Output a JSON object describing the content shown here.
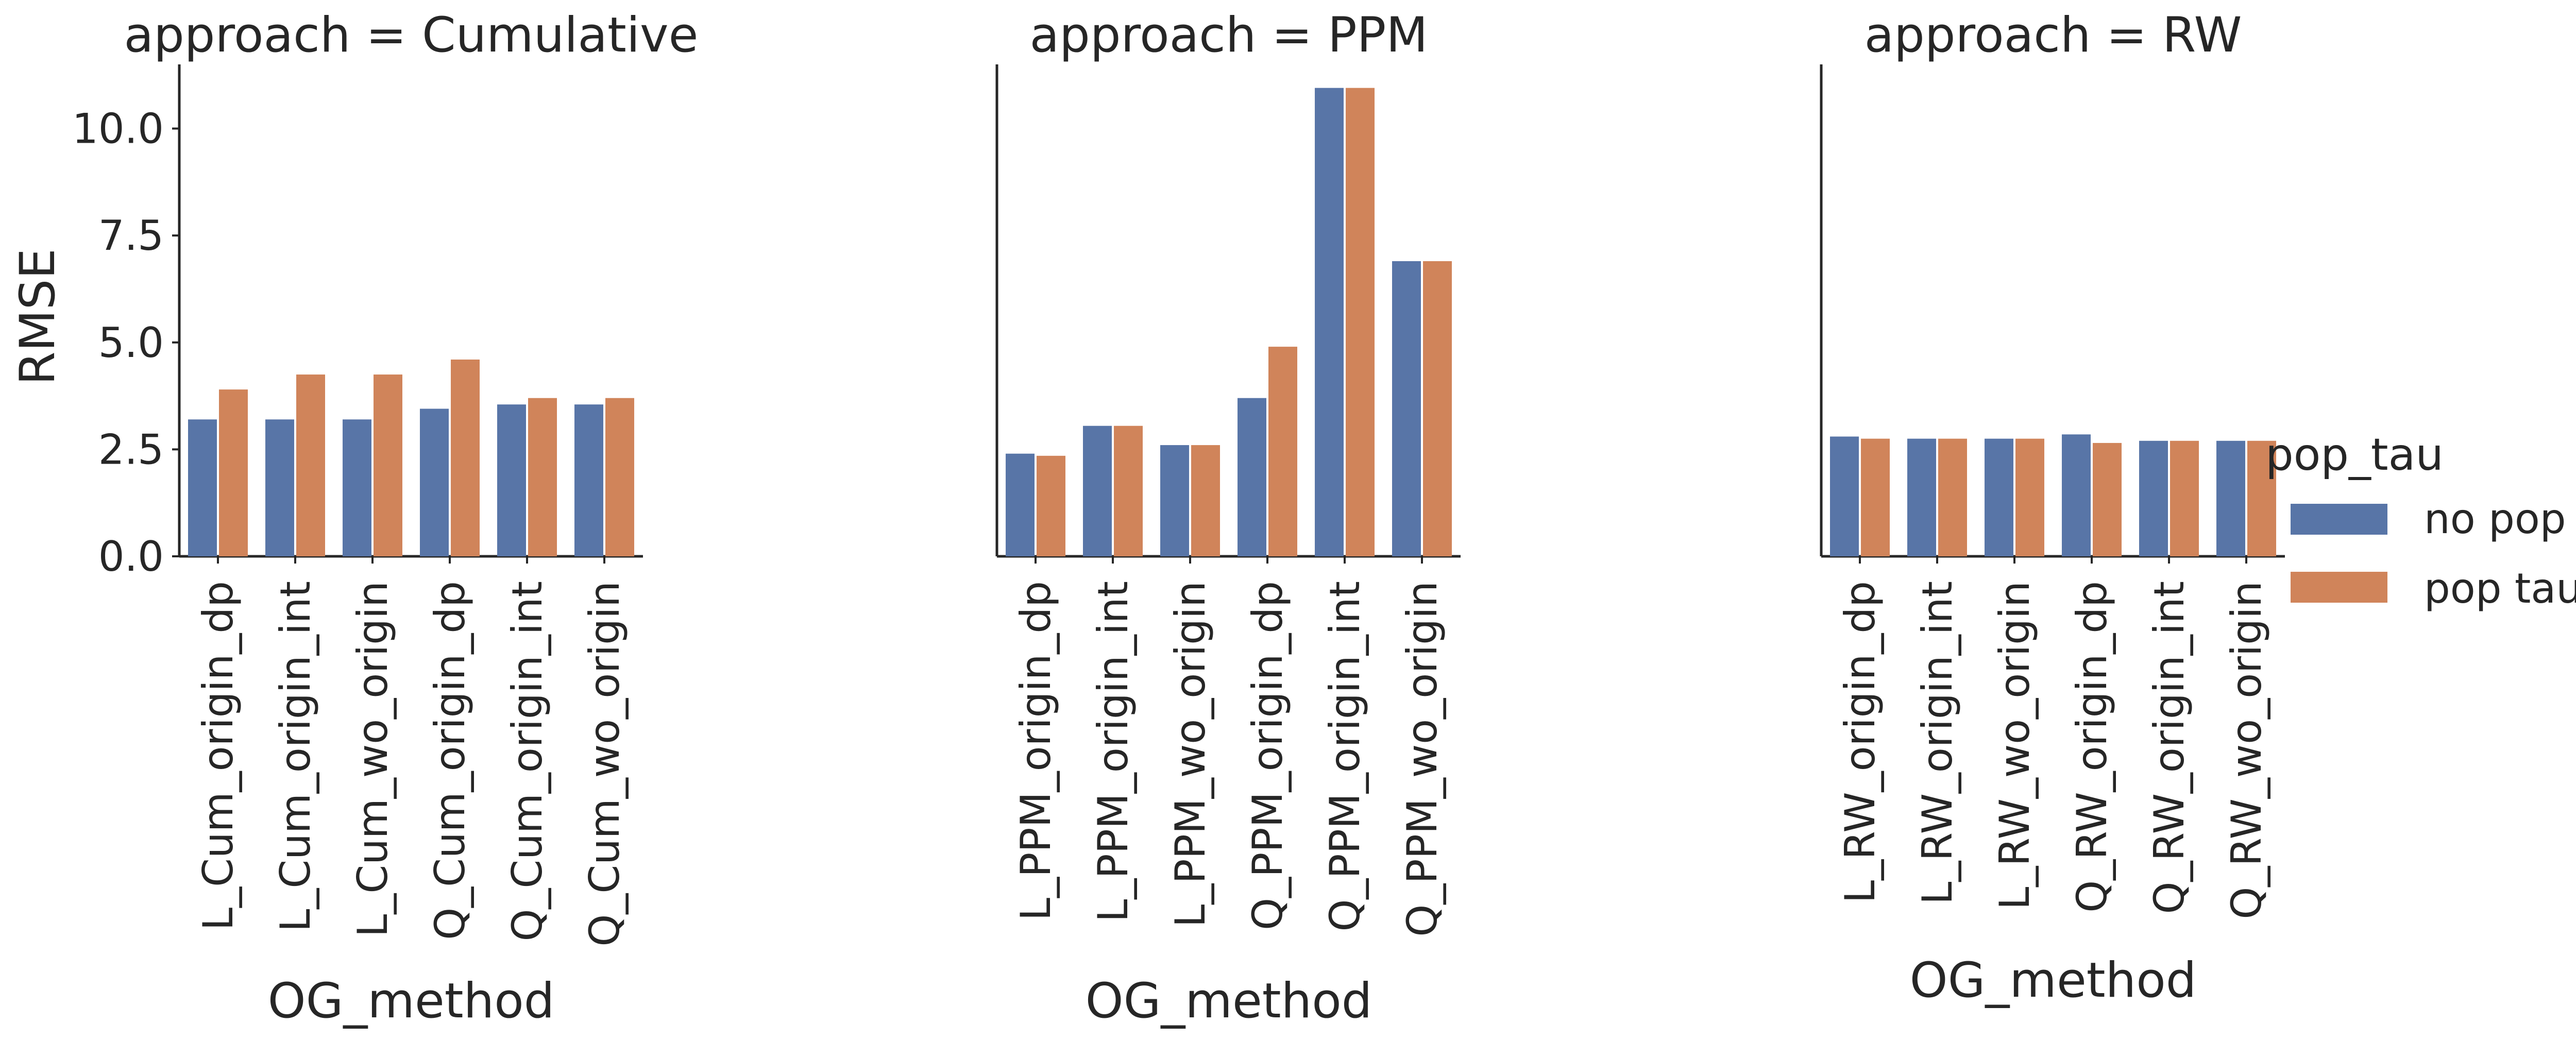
{
  "chart_data": {
    "type": "bar",
    "facet_by": "approach",
    "ylabel": "RMSE",
    "ylim": [
      0,
      11.5
    ],
    "yticks": [
      "0.0",
      "2.5",
      "5.0",
      "7.5",
      "10.0"
    ],
    "ytick_values": [
      0,
      2.5,
      5,
      7.5,
      10
    ],
    "legend": {
      "title": "pop_tau",
      "placement": "right",
      "entries": [
        "no pop tau",
        "pop tau"
      ]
    },
    "colors": [
      "#5875a7",
      "#d0845a"
    ],
    "facets": [
      {
        "title": "approach = Cumulative",
        "xlabel": "OG_method",
        "categories": [
          "L_Cum_origin_dp",
          "L_Cum_origin_int",
          "L_Cum_wo_origin",
          "Q_Cum_origin_dp",
          "Q_Cum_origin_int",
          "Q_Cum_wo_origin"
        ],
        "series": [
          {
            "name": "no pop tau",
            "values": [
              3.2,
              3.2,
              3.2,
              3.45,
              3.55,
              3.55
            ]
          },
          {
            "name": "pop tau",
            "values": [
              3.9,
              4.25,
              4.25,
              4.6,
              3.7,
              3.7
            ]
          }
        ]
      },
      {
        "title": "approach = PPM",
        "xlabel": "OG_method",
        "categories": [
          "L_PPM_origin_dp",
          "L_PPM_origin_int",
          "L_PPM_wo_origin",
          "Q_PPM_origin_dp",
          "Q_PPM_origin_int",
          "Q_PPM_wo_origin"
        ],
        "series": [
          {
            "name": "no pop tau",
            "values": [
              2.4,
              3.05,
              2.6,
              3.7,
              10.95,
              6.9
            ]
          },
          {
            "name": "pop tau",
            "values": [
              2.35,
              3.05,
              2.6,
              4.9,
              10.95,
              6.9
            ]
          }
        ]
      },
      {
        "title": "approach = RW",
        "xlabel": "OG_method",
        "categories": [
          "L_RW_origin_dp",
          "L_RW_origin_int",
          "L_RW_wo_origin",
          "Q_RW_origin_dp",
          "Q_RW_origin_int",
          "Q_RW_wo_origin"
        ],
        "series": [
          {
            "name": "no pop tau",
            "values": [
              2.8,
              2.75,
              2.75,
              2.85,
              2.7,
              2.7
            ]
          },
          {
            "name": "pop tau",
            "values": [
              2.75,
              2.75,
              2.75,
              2.65,
              2.7,
              2.7
            ]
          }
        ]
      }
    ]
  }
}
